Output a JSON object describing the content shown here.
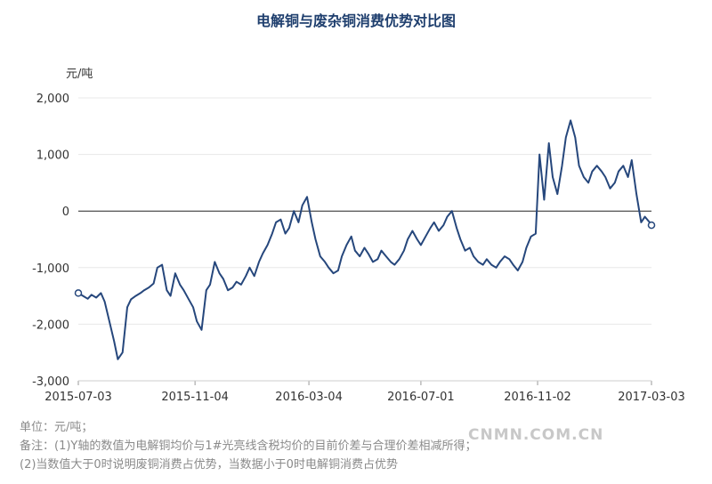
{
  "title": "电解铜与废杂铜消费优势对比图",
  "unit": "元/吨",
  "notes": [
    "单位：元/吨；",
    "备注：(1)Y轴的数值为电解铜均价与1#光亮线含税均价的目前价差与合理价差相减所得；",
    "(2)当数值大于0时说明废铜消费占优势，当数据小于0时电解铜消费占优势"
  ],
  "watermark": "CNMN.COM.CN",
  "colors": {
    "line": "#26477c",
    "zero_line": "#222222",
    "grid": "#e8e8e8"
  },
  "chart_data": {
    "type": "line",
    "title": "电解铜与废杂铜消费优势对比图",
    "ylabel": "元/吨",
    "ylim": [
      -3000,
      2000
    ],
    "yticks": [
      -3000,
      -2000,
      -1000,
      0,
      1000,
      2000
    ],
    "ytick_labels": [
      "-3,000",
      "-2,000",
      "-1,000",
      "0",
      "1,000",
      "2,000"
    ],
    "xlim": [
      "2015-07-03",
      "2017-03-03"
    ],
    "xtick_labels": [
      "2015-07-03",
      "2015-11-04",
      "2016-03-04",
      "2016-07-01",
      "2016-11-02",
      "2017-03-03"
    ],
    "grid": true,
    "series": [
      {
        "x": [
          "2015-07-03",
          "2015-07-08",
          "2015-07-13",
          "2015-07-17",
          "2015-07-22",
          "2015-07-27",
          "2015-07-31",
          "2015-08-05",
          "2015-08-10",
          "2015-08-14",
          "2015-08-19",
          "2015-08-24",
          "2015-08-28",
          "2015-09-02",
          "2015-09-07",
          "2015-09-11",
          "2015-09-16",
          "2015-09-21",
          "2015-09-25",
          "2015-09-30",
          "2015-10-05",
          "2015-10-09",
          "2015-10-14",
          "2015-10-19",
          "2015-10-23",
          "2015-10-28",
          "2015-11-02",
          "2015-11-06",
          "2015-11-11",
          "2015-11-16",
          "2015-11-20",
          "2015-11-25",
          "2015-11-30",
          "2015-12-04",
          "2015-12-09",
          "2015-12-14",
          "2015-12-18",
          "2015-12-23",
          "2015-12-28",
          "2016-01-01",
          "2016-01-06",
          "2016-01-11",
          "2016-01-15",
          "2016-01-20",
          "2016-01-25",
          "2016-01-29",
          "2016-02-03",
          "2016-02-08",
          "2016-02-12",
          "2016-02-17",
          "2016-02-22",
          "2016-02-26",
          "2016-03-02",
          "2016-03-07",
          "2016-03-11",
          "2016-03-16",
          "2016-03-21",
          "2016-03-25",
          "2016-03-30",
          "2016-04-04",
          "2016-04-08",
          "2016-04-13",
          "2016-04-18",
          "2016-04-22",
          "2016-04-27",
          "2016-05-02",
          "2016-05-06",
          "2016-05-11",
          "2016-05-16",
          "2016-05-20",
          "2016-05-25",
          "2016-05-30",
          "2016-06-03",
          "2016-06-08",
          "2016-06-13",
          "2016-06-17",
          "2016-06-22",
          "2016-06-27",
          "2016-07-01",
          "2016-07-06",
          "2016-07-11",
          "2016-07-15",
          "2016-07-20",
          "2016-07-25",
          "2016-07-29",
          "2016-08-03",
          "2016-08-08",
          "2016-08-12",
          "2016-08-17",
          "2016-08-22",
          "2016-08-26",
          "2016-08-31",
          "2016-09-05",
          "2016-09-09",
          "2016-09-14",
          "2016-09-19",
          "2016-09-23",
          "2016-09-28",
          "2016-10-03",
          "2016-10-07",
          "2016-10-12",
          "2016-10-17",
          "2016-10-21",
          "2016-10-26",
          "2016-10-31",
          "2016-11-04",
          "2016-11-09",
          "2016-11-14",
          "2016-11-18",
          "2016-11-23",
          "2016-11-28",
          "2016-12-02",
          "2016-12-07",
          "2016-12-12",
          "2016-12-16",
          "2016-12-21",
          "2016-12-26",
          "2016-12-30",
          "2017-01-04",
          "2017-01-09",
          "2017-01-13",
          "2017-01-18",
          "2017-01-23",
          "2017-01-27",
          "2017-02-01",
          "2017-02-06",
          "2017-02-10",
          "2017-02-15",
          "2017-02-20",
          "2017-02-24",
          "2017-03-01",
          "2017-03-03"
        ],
        "values": [
          -1450,
          -1500,
          -1550,
          -1480,
          -1530,
          -1450,
          -1600,
          -1950,
          -2300,
          -2620,
          -2500,
          -1700,
          -1560,
          -1500,
          -1450,
          -1400,
          -1350,
          -1280,
          -1000,
          -950,
          -1400,
          -1500,
          -1100,
          -1300,
          -1400,
          -1550,
          -1700,
          -1950,
          -2100,
          -1400,
          -1300,
          -900,
          -1100,
          -1200,
          -1400,
          -1350,
          -1250,
          -1300,
          -1150,
          -1000,
          -1150,
          -900,
          -750,
          -600,
          -400,
          -200,
          -150,
          -400,
          -300,
          0,
          -200,
          100,
          250,
          -200,
          -500,
          -800,
          -900,
          -1000,
          -1100,
          -1050,
          -800,
          -600,
          -450,
          -700,
          -800,
          -650,
          -750,
          -900,
          -850,
          -700,
          -800,
          -900,
          -950,
          -850,
          -700,
          -500,
          -350,
          -500,
          -600,
          -450,
          -300,
          -200,
          -350,
          -250,
          -100,
          0,
          -300,
          -500,
          -700,
          -650,
          -800,
          -900,
          -950,
          -850,
          -950,
          -1000,
          -900,
          -800,
          -850,
          -950,
          -1050,
          -900,
          -650,
          -450,
          -400,
          1000,
          200,
          1200,
          600,
          300,
          800,
          1300,
          1600,
          1300,
          800,
          600,
          500,
          700,
          800,
          700,
          600,
          400,
          500,
          700,
          800,
          600,
          900,
          300,
          -200,
          -100,
          -200,
          -250
        ]
      }
    ]
  }
}
